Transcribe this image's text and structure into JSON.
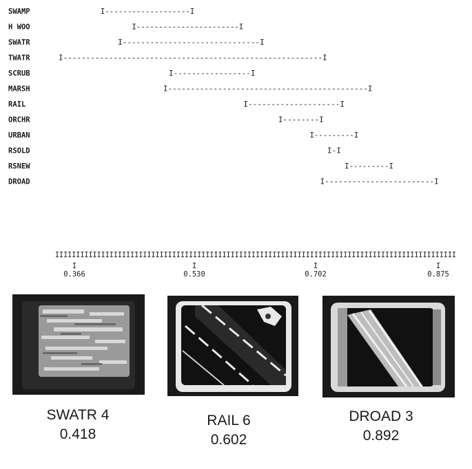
{
  "chart_data": {
    "type": "range",
    "xlim": [
      0.305,
      0.88
    ],
    "xticks": [
      "0.366",
      "0.530",
      "0.702",
      "0.875"
    ],
    "ranges": [
      {
        "label": "SWAMP",
        "low": 0.37,
        "high": 0.505
      },
      {
        "label": "H WOO",
        "low": 0.415,
        "high": 0.575
      },
      {
        "label": "SWATR",
        "low": 0.395,
        "high": 0.605
      },
      {
        "label": "TWATR",
        "low": 0.31,
        "high": 0.695
      },
      {
        "label": "SCRUB",
        "low": 0.468,
        "high": 0.592
      },
      {
        "label": "MARSH",
        "low": 0.46,
        "high": 0.76
      },
      {
        "label": "RAIL",
        "low": 0.575,
        "high": 0.72
      },
      {
        "label": "ORCHR",
        "low": 0.625,
        "high": 0.69
      },
      {
        "label": "URBAN",
        "low": 0.67,
        "high": 0.74
      },
      {
        "label": "RSOLD",
        "low": 0.695,
        "high": 0.715
      },
      {
        "label": "RSNEW",
        "low": 0.72,
        "high": 0.79
      },
      {
        "label": "DROAD",
        "low": 0.685,
        "high": 0.855
      }
    ]
  },
  "photos": [
    {
      "class_label": "SWATR 4",
      "value": "0.418",
      "image_icon": "water-texture-icon"
    },
    {
      "class_label": "RAIL 6",
      "value": "0.602",
      "image_icon": "railroad-aerial-icon"
    },
    {
      "class_label": "DROAD 3",
      "value": "0.892",
      "image_icon": "divided-road-aerial-icon"
    }
  ],
  "colors": {
    "ink": "#1a1a1a",
    "paper": "#ffffff",
    "screen_dark": "#1a1a1a",
    "screen_light": "#e8e8e8"
  }
}
